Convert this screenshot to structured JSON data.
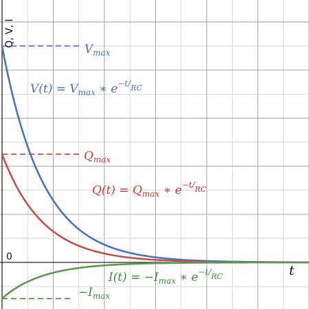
{
  "chart_data": {
    "type": "line",
    "title": "",
    "xlabel": "t",
    "ylabel": "Q, V, I",
    "origin_label": "0",
    "grid": true,
    "x_range": [
      0,
      24
    ],
    "y_range": [
      -4,
      20
    ],
    "series": [
      {
        "name": "V",
        "color": "#4a72b8",
        "formula": "V(t) = V_max * e^(-t/RC)",
        "amplitude": 18,
        "decay_constant": 3.2,
        "reference_label": "V_max"
      },
      {
        "name": "Q",
        "color": "#c1504b",
        "formula": "Q(t) = Q_max * e^(-t/RC)",
        "amplitude": 9,
        "decay_constant": 3.2,
        "reference_label": "Q_max"
      },
      {
        "name": "I",
        "color": "#5a9a4c",
        "formula": "I(t) = -I_max * e^(-t/RC)",
        "amplitude": -3,
        "decay_constant": 3.2,
        "reference_label": "-I_max"
      }
    ]
  },
  "labels": {
    "y_axis": "Q, V, I",
    "x_axis": "t",
    "origin": "0",
    "v_max_sub": "max",
    "q_max_sub": "max",
    "i_max_sub": "max",
    "v_eq_prefix": "V(t) = V",
    "q_eq_prefix": "Q(t) = Q",
    "i_eq_prefix": "I(t) = −I",
    "eq_suffix": " ∗ e",
    "exp_num": "−t",
    "exp_den": "RC"
  }
}
